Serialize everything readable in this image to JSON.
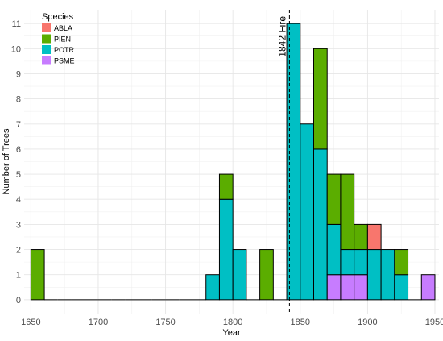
{
  "chart_data": {
    "type": "bar",
    "stacked": true,
    "xlabel": "Year",
    "ylabel": "Number of Trees",
    "xlim": [
      1645,
      1953
    ],
    "ylim": [
      -0.55,
      11.55
    ],
    "x_ticks": [
      1650,
      1700,
      1750,
      1800,
      1850,
      1900,
      1950
    ],
    "y_ticks": [
      0,
      1,
      2,
      3,
      4,
      5,
      6,
      7,
      8,
      9,
      10,
      11
    ],
    "bin_width": 10,
    "bin_starts": [
      1650,
      1660,
      1670,
      1680,
      1690,
      1700,
      1710,
      1720,
      1730,
      1740,
      1750,
      1760,
      1770,
      1780,
      1790,
      1800,
      1810,
      1820,
      1830,
      1840,
      1850,
      1860,
      1870,
      1880,
      1890,
      1900,
      1910,
      1920,
      1930,
      1940
    ],
    "legend": {
      "title": "Species",
      "position": "top-left"
    },
    "grid": true,
    "series": [
      {
        "name": "PSME",
        "color": "#C77CFF",
        "values": [
          0,
          0,
          0,
          0,
          0,
          0,
          0,
          0,
          0,
          0,
          0,
          0,
          0,
          0,
          0,
          0,
          0,
          0,
          0,
          0,
          0,
          0,
          1,
          1,
          1,
          0,
          0,
          0,
          0,
          1
        ]
      },
      {
        "name": "POTR",
        "color": "#00BFC4",
        "values": [
          0,
          0,
          0,
          0,
          0,
          0,
          0,
          0,
          0,
          0,
          0,
          0,
          0,
          1,
          4,
          2,
          0,
          0,
          0,
          11,
          7,
          6,
          2,
          1,
          1,
          2,
          2,
          1,
          0,
          0
        ]
      },
      {
        "name": "PIEN",
        "color": "#5BAD00",
        "values": [
          2,
          0,
          0,
          0,
          0,
          0,
          0,
          0,
          0,
          0,
          0,
          0,
          0,
          0,
          1,
          0,
          0,
          2,
          0,
          0,
          0,
          4,
          2,
          3,
          1,
          0,
          0,
          1,
          0,
          0
        ]
      },
      {
        "name": "ABLA",
        "color": "#F8766D",
        "values": [
          0,
          0,
          0,
          0,
          0,
          0,
          0,
          0,
          0,
          0,
          0,
          0,
          0,
          0,
          0,
          0,
          0,
          0,
          0,
          0,
          0,
          0,
          0,
          0,
          0,
          1,
          0,
          0,
          0,
          0
        ]
      }
    ],
    "legend_order": [
      "ABLA",
      "PIEN",
      "POTR",
      "PSME"
    ],
    "annotations": [
      {
        "type": "vline",
        "x": 1842,
        "style": "dashed",
        "label": "1842 Fire"
      }
    ]
  }
}
